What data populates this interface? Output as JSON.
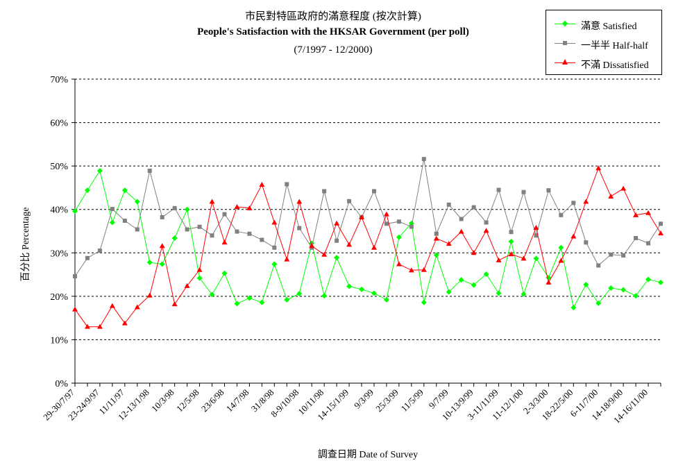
{
  "titles": {
    "line1": "市民對特區政府的滿意程度 (按次計算)",
    "line2": "People's Satisfaction with the HKSAR Government (per poll)",
    "line3": "(7/1997 - 12/2000)"
  },
  "axis_titles": {
    "x": "調查日期 Date of Survey",
    "y": "百分比 Percentage"
  },
  "legend": [
    {
      "label": "滿意 Satisfied",
      "color": "#00ff00",
      "marker": "diamond"
    },
    {
      "label": "一半半 Half-half",
      "color": "#808080",
      "marker": "square"
    },
    {
      "label": "不滿 Dissatisfied",
      "color": "#ff0000",
      "marker": "triangle"
    }
  ],
  "chart_data": {
    "type": "line",
    "title": "市民對特區政府的滿意程度 (按次計算) / People's Satisfaction with the HKSAR Government (per poll) / (7/1997 - 12/2000)",
    "xlabel": "調查日期 Date of Survey",
    "ylabel": "百分比 Percentage",
    "ylim": [
      0,
      70
    ],
    "yticks": [
      "0%",
      "10%",
      "20%",
      "30%",
      "40%",
      "50%",
      "60%",
      "70%"
    ],
    "grid": true,
    "legend_position": "top-right",
    "x_tick_labels": [
      "29-30/7/97",
      "23-24/9/97",
      "11/11/97",
      "12-13/1/98",
      "10/3/98",
      "12/5/98",
      "23/6/98",
      "14/7/98",
      "31/8/98",
      "8-9/10/98",
      "10/11/98",
      "14-15/1/99",
      "9/3/99",
      "25/3/99",
      "11/5/99",
      "9/7/99",
      "10-13/9/99",
      "3-11/11/99",
      "11-12/1/00",
      "2-3/3/00",
      "18-22/5/00",
      "6-11/7/00",
      "14-18/9/00",
      "14-16/11/00"
    ],
    "series": [
      {
        "name": "滿意 Satisfied",
        "color": "#00ff00",
        "marker": "diamond",
        "values": [
          39.6,
          44.4,
          48.9,
          37,
          44.4,
          41.8,
          27.8,
          27.4,
          33.4,
          40,
          24.2,
          20.4,
          25.3,
          18.3,
          19.6,
          18.6,
          27.4,
          19.2,
          20.6,
          32.2,
          20.1,
          28.9,
          22.3,
          21.6,
          20.7,
          19.2,
          33.6,
          36.8,
          18.6,
          29.5,
          21,
          23.8,
          22.6,
          25.1,
          20.7,
          32.6,
          20.5,
          28.7,
          24.3,
          31.2,
          17.4,
          22.7,
          18.4,
          21.9,
          21.5,
          20.1,
          23.9,
          23.2
        ]
      },
      {
        "name": "一半半 Half-half",
        "color": "#808080",
        "marker": "square",
        "values": [
          24.6,
          28.8,
          30.5,
          40.1,
          37.4,
          35.4,
          48.9,
          38.2,
          40.3,
          35.4,
          36,
          34,
          38.9,
          34.9,
          34.4,
          33,
          31.2,
          45.8,
          35.7,
          31.2,
          44.2,
          32.8,
          41.9,
          38.2,
          44.2,
          36.7,
          37.2,
          36,
          51.6,
          34.4,
          41.1,
          37.8,
          40.5,
          37,
          44.5,
          34.8,
          44,
          34,
          44.4,
          38.7,
          41.5,
          32.4,
          27.1,
          29.6,
          29.4,
          33.4,
          32.2,
          36.7
        ]
      },
      {
        "name": "不滿 Dissatisfied",
        "color": "#ff0000",
        "marker": "triangle",
        "values": [
          17,
          13,
          13,
          17.8,
          13.8,
          17.5,
          20.2,
          31.6,
          18.2,
          22.4,
          26.1,
          41.8,
          32.4,
          40.6,
          40.3,
          45.7,
          37,
          28.5,
          41.8,
          31.6,
          29.6,
          36.8,
          31.9,
          38.2,
          31.2,
          38.9,
          27.4,
          26,
          26.1,
          33.3,
          32.1,
          34.9,
          30,
          35.1,
          28.3,
          29.7,
          28.7,
          35.8,
          23.2,
          28.2,
          33.8,
          41.8,
          49.5,
          43,
          44.8,
          38.7,
          39.2,
          34.5
        ]
      }
    ]
  }
}
